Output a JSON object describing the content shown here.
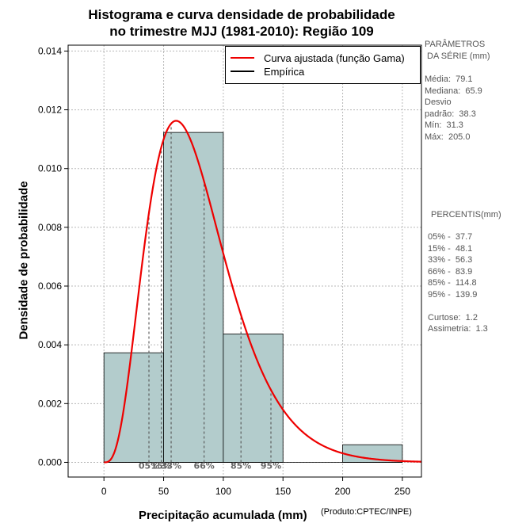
{
  "title_line1": "Histograma e curva densidade de probabilidade",
  "title_line2": "no trimestre MJJ (1981-2010): Região 109",
  "xlabel": "Precipitação acumulada (mm)",
  "ylabel": "Densidade de probabilidade",
  "credit": "(Produto:CPTEC/INPE)",
  "legend": {
    "fitted": "Curva ajustada (função Gama)",
    "empirical": "Empírica"
  },
  "stats": {
    "header1": "PARÂMETROS",
    "header2": " DA SÉRIE (mm)",
    "media": "Média:  79.1",
    "mediana": "Mediana:  65.9",
    "desvio1": "Desvio",
    "desvio2": "padrão:  38.3",
    "min": "Mín:  31.3",
    "max": "Máx:  205.0"
  },
  "percentiles": {
    "header": "PERCENTIS(mm)",
    "p05": "05% -  37.7",
    "p15": "15% -  48.1",
    "p33": "33% -  56.3",
    "p66": "66% -  83.9",
    "p85": "85% -  114.8",
    "p95": "95% -  139.9",
    "curtose": "Curtose:  1.2",
    "assimetria": "Assimetria:  1.3"
  },
  "colors": {
    "bar_fill": "#b3cccc",
    "curve": "#ee0000",
    "percentile_line": "#555555",
    "percentile_label": "#666666"
  },
  "chart_data": {
    "type": "bar",
    "title": "Histograma e curva densidade de probabilidade no trimestre MJJ (1981-2010): Região 109",
    "xlabel": "Precipitação acumulada (mm)",
    "ylabel": "Densidade de probabilidade",
    "xlim": [
      -30,
      266
    ],
    "ylim": [
      -0.0005,
      0.0142
    ],
    "xticks": [
      0,
      50,
      100,
      150,
      200,
      250
    ],
    "yticks": [
      0.0,
      0.002,
      0.004,
      0.006,
      0.008,
      0.01,
      0.012,
      0.014
    ],
    "ytick_labels": [
      "0.000",
      "0.002",
      "0.004",
      "0.006",
      "0.008",
      "0.010",
      "0.012",
      "0.014"
    ],
    "bins": [
      {
        "start": 0,
        "end": 50,
        "density": 0.00373
      },
      {
        "start": 50,
        "end": 100,
        "density": 0.01123
      },
      {
        "start": 100,
        "end": 150,
        "density": 0.00437
      },
      {
        "start": 150,
        "end": 200,
        "density": 0.0
      },
      {
        "start": 200,
        "end": 250,
        "density": 0.0006
      }
    ],
    "gamma_curve": {
      "shape": 4.27,
      "scale": 18.5,
      "location": 0,
      "x_from": 0,
      "x_to": 266
    },
    "percentiles": [
      {
        "label": "05%",
        "value": 37.7
      },
      {
        "label": "15%",
        "value": 48.1
      },
      {
        "label": "33%",
        "value": 56.3
      },
      {
        "label": "66%",
        "value": 83.9
      },
      {
        "label": "85%",
        "value": 114.8
      },
      {
        "label": "95%",
        "value": 139.9
      }
    ],
    "grid": true,
    "legend_position": "top-right"
  }
}
